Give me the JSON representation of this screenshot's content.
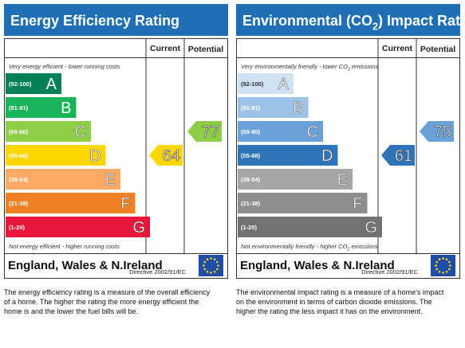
{
  "panels": [
    {
      "title": [
        "Energy Efficiency Rating"
      ],
      "columns": [
        "Current",
        "Potential"
      ],
      "top_note": [
        "Very energy efficient - lower running costs"
      ],
      "bottom_note": [
        "Not energy efficient - higher running costs"
      ],
      "bands": [
        {
          "range": "(92-100)",
          "letter": "A",
          "color": "#008054"
        },
        {
          "range": "(81-91)",
          "letter": "B",
          "color": "#19b459"
        },
        {
          "range": "(69-80)",
          "letter": "C",
          "color": "#8dce46"
        },
        {
          "range": "(55-68)",
          "letter": "D",
          "color": "#ffd500"
        },
        {
          "range": "(39-54)",
          "letter": "E",
          "color": "#fcaa65"
        },
        {
          "range": "(21-38)",
          "letter": "F",
          "color": "#ef8023"
        },
        {
          "range": "(1-20)",
          "letter": "G",
          "color": "#e9153b"
        }
      ],
      "current": 64,
      "potential": 77,
      "region": "England, Wales & N.Ireland",
      "directive": "Directive 2002/91/EC",
      "description": [
        "The energy efficiency rating is a measure of the overall efficiency",
        "of a home. The higher the rating the more energy efficient the",
        "home is and the lower the fuel bills will be."
      ]
    },
    {
      "title": [
        "Environmental (CO",
        "2",
        ") Impact Rating"
      ],
      "columns": [
        "Current",
        "Potential"
      ],
      "top_note": [
        "Very environmentally friendly - lower CO",
        "2",
        " emissions"
      ],
      "bottom_note": [
        "Not environmentally friendly - higher CO",
        "2",
        " emissions"
      ],
      "bands": [
        {
          "range": "(92-100)",
          "letter": "A",
          "color": "#cfe2f3"
        },
        {
          "range": "(81-91)",
          "letter": "B",
          "color": "#9cc2e8"
        },
        {
          "range": "(69-80)",
          "letter": "C",
          "color": "#6aa1d8"
        },
        {
          "range": "(55-68)",
          "letter": "D",
          "color": "#2f74b9"
        },
        {
          "range": "(39-54)",
          "letter": "E",
          "color": "#a6a6a6"
        },
        {
          "range": "(21-38)",
          "letter": "F",
          "color": "#8e8e8e"
        },
        {
          "range": "(1-20)",
          "letter": "G",
          "color": "#727272"
        }
      ],
      "current": 61,
      "potential": 75,
      "region": "England, Wales & N.Ireland",
      "directive": "Directive 2002/91/EC",
      "description": [
        "The environmental impact rating is a measure of a home's impact",
        "on the environment in terms of carbon dioxide emissions. The",
        "higher the rating the less impact it has on the environment."
      ]
    }
  ]
}
